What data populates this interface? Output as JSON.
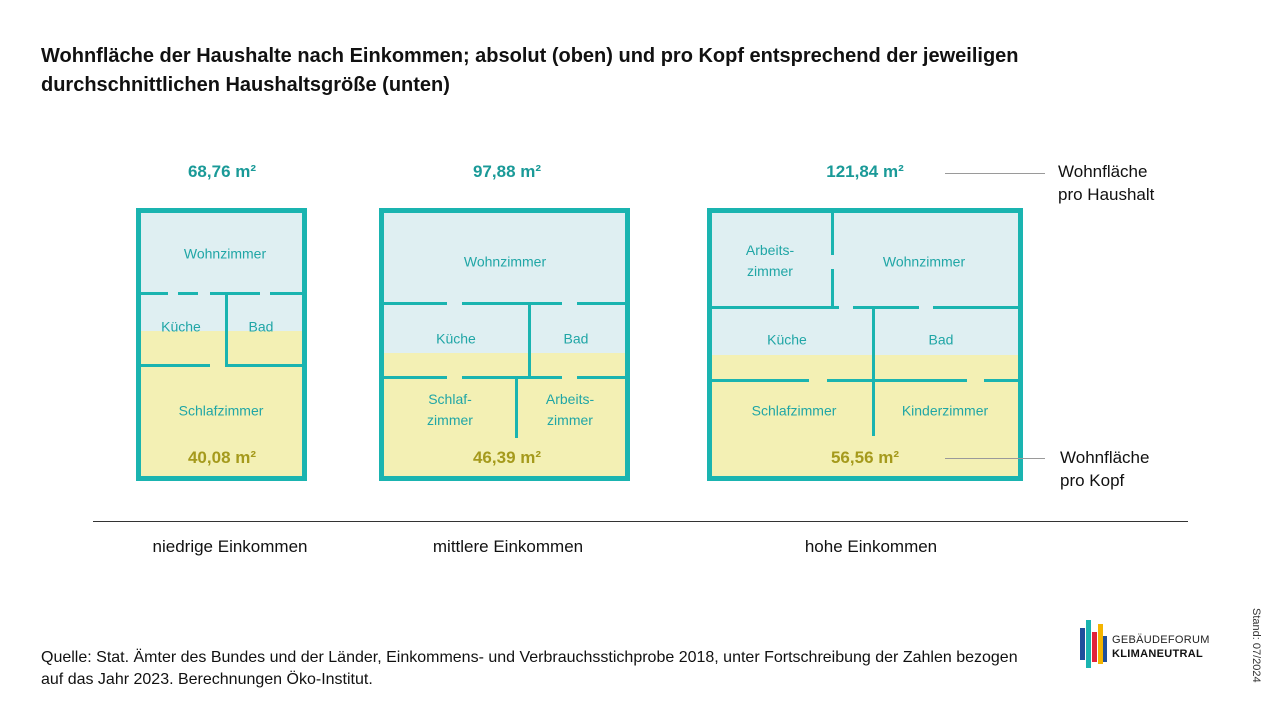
{
  "title": "Wohnfläche der Haushalte nach Einkommen; absolut (oben) und pro Kopf entsprechend der jeweiligen durchschnittlichen Haushaltsgröße (unten)",
  "houses": [
    {
      "category": "niedrige Einkommen",
      "area_household": "68,76 m²",
      "area_per_capita": "40,08 m²",
      "rooms": [
        "Wohnzimmer",
        "Küche",
        "Bad",
        "Schlafzimmer"
      ]
    },
    {
      "category": "mittlere Einkommen",
      "area_household": "97,88 m²",
      "area_per_capita": "46,39 m²",
      "rooms": [
        "Wohnzimmer",
        "Küche",
        "Bad",
        "Schlaf-\nzimmer",
        "Arbeits-\nzimmer"
      ]
    },
    {
      "category": "hohe Einkommen",
      "area_household": "121,84 m²",
      "area_per_capita": "56,56 m²",
      "rooms": [
        "Arbeits-\nzimmer",
        "Wohnzimmer",
        "Küche",
        "Bad",
        "Schlafzimmer",
        "Kinderzimmer"
      ]
    }
  ],
  "labels": {
    "household_line1": "Wohnfläche",
    "household_line2": "pro Haushalt",
    "per_capita_line1": "Wohnfläche",
    "per_capita_line2": "pro Kopf"
  },
  "source": "Quelle: Stat. Ämter des Bundes und der Länder, Einkommens- und Verbrauchsstichprobe 2018, unter Fortschreibung der Zahlen bezogen auf das Jahr 2023. Berechnungen Öko-Institut.",
  "logo": {
    "line1": "GEBÄUDEFORUM",
    "line2": "KLIMANEUTRAL"
  },
  "stand": "Stand: 07/2024",
  "colors": {
    "wall": "#1ab4b0",
    "upper_fill": "#dfeff2",
    "lower_fill": "#f3f0b4",
    "household_value": "#1a9a98",
    "per_capita_value": "#a59a1c",
    "room_label": "#20a6a6"
  }
}
